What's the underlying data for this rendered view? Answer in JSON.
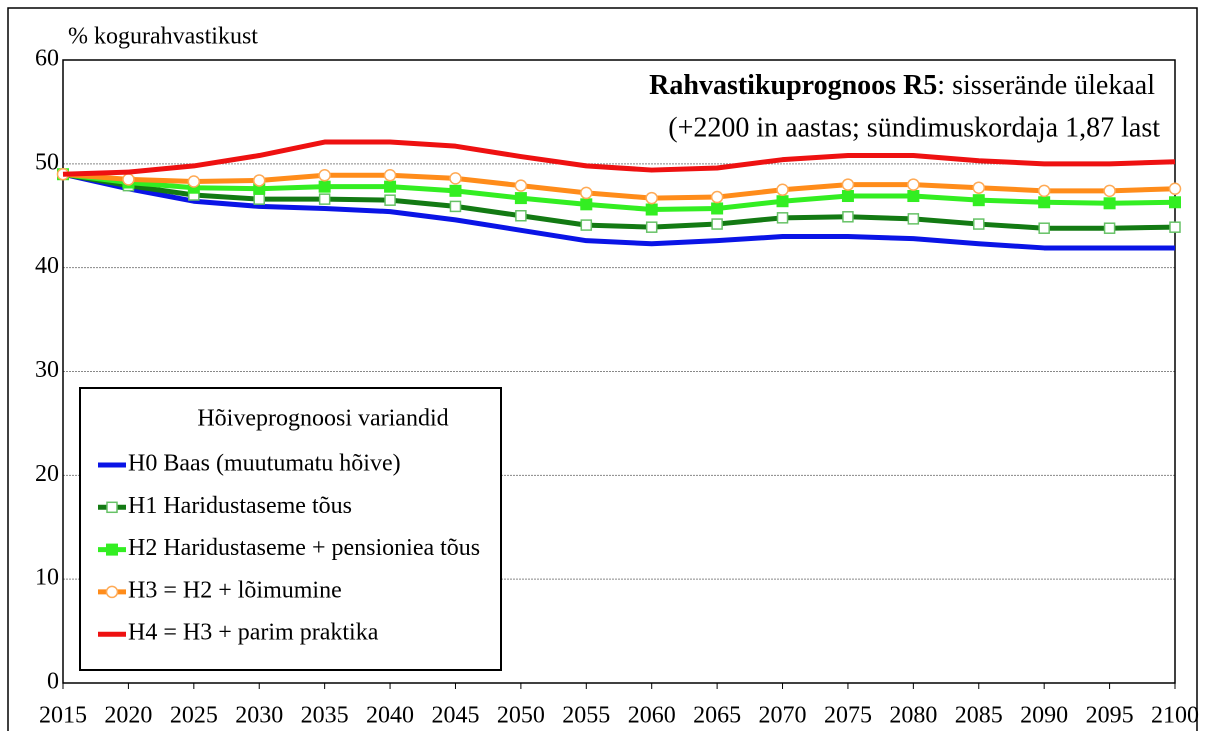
{
  "chart_data": {
    "type": "line",
    "title": {
      "bold": "Rahvastikuprognoos R5",
      "rest": ": sisserände ülekaal"
    },
    "subtitle": "(+2200 in aastas; sündimuskordaja 1,87 last",
    "y_label": "% kogurahvastikust",
    "legend_title": "Hõiveprognoosi variandid",
    "legend_position": "bottom-left",
    "grid": true,
    "x": [
      2015,
      2020,
      2025,
      2030,
      2035,
      2040,
      2045,
      2050,
      2055,
      2060,
      2065,
      2070,
      2075,
      2080,
      2085,
      2090,
      2095,
      2100
    ],
    "xlim": [
      2015,
      2100
    ],
    "xticks": [
      2015,
      2020,
      2025,
      2030,
      2035,
      2040,
      2045,
      2050,
      2055,
      2060,
      2065,
      2070,
      2075,
      2080,
      2085,
      2090,
      2095,
      2100
    ],
    "ylim": [
      0,
      60
    ],
    "yticks": [
      0,
      10,
      20,
      30,
      40,
      50,
      60
    ],
    "series": [
      {
        "name": "H0 Baas (muutumatu hõive)",
        "color": "#0a14e6",
        "values": [
          49,
          47.6,
          46.4,
          45.9,
          45.7,
          45.4,
          44.6,
          43.6,
          42.6,
          42.3,
          42.6,
          43.0,
          43.0,
          42.8,
          42.3,
          41.9,
          41.9,
          41.9
        ]
      },
      {
        "name": "H1 Haridustaseme tõus",
        "color": "#137a13",
        "marker": "square-open",
        "marker_color": "#66c266",
        "values": [
          49,
          47.9,
          47.0,
          46.6,
          46.6,
          46.5,
          45.9,
          45.0,
          44.1,
          43.9,
          44.2,
          44.8,
          44.9,
          44.7,
          44.2,
          43.8,
          43.8,
          43.9
        ]
      },
      {
        "name": "H2 Haridustaseme + pensioniea tõus",
        "color": "#33ee22",
        "marker": "square",
        "marker_color": "#33ee22",
        "values": [
          49,
          48.2,
          47.7,
          47.6,
          47.8,
          47.8,
          47.4,
          46.7,
          46.1,
          45.6,
          45.7,
          46.4,
          46.9,
          46.9,
          46.5,
          46.3,
          46.2,
          46.3
        ]
      },
      {
        "name": "H3 = H2 + lõimumine",
        "color": "#ff8c1a",
        "marker": "circle-open",
        "marker_color": "#ffaa55",
        "values": [
          49,
          48.5,
          48.3,
          48.4,
          48.9,
          48.9,
          48.6,
          47.9,
          47.2,
          46.7,
          46.8,
          47.5,
          48.0,
          48.0,
          47.7,
          47.4,
          47.4,
          47.6
        ]
      },
      {
        "name": "H4 = H3 + parim praktika",
        "color": "#ee1111",
        "values": [
          49,
          49.2,
          49.8,
          50.8,
          52.1,
          52.1,
          51.7,
          50.7,
          49.8,
          49.4,
          49.6,
          50.4,
          50.8,
          50.8,
          50.3,
          50.0,
          50.0,
          50.2
        ]
      }
    ]
  }
}
